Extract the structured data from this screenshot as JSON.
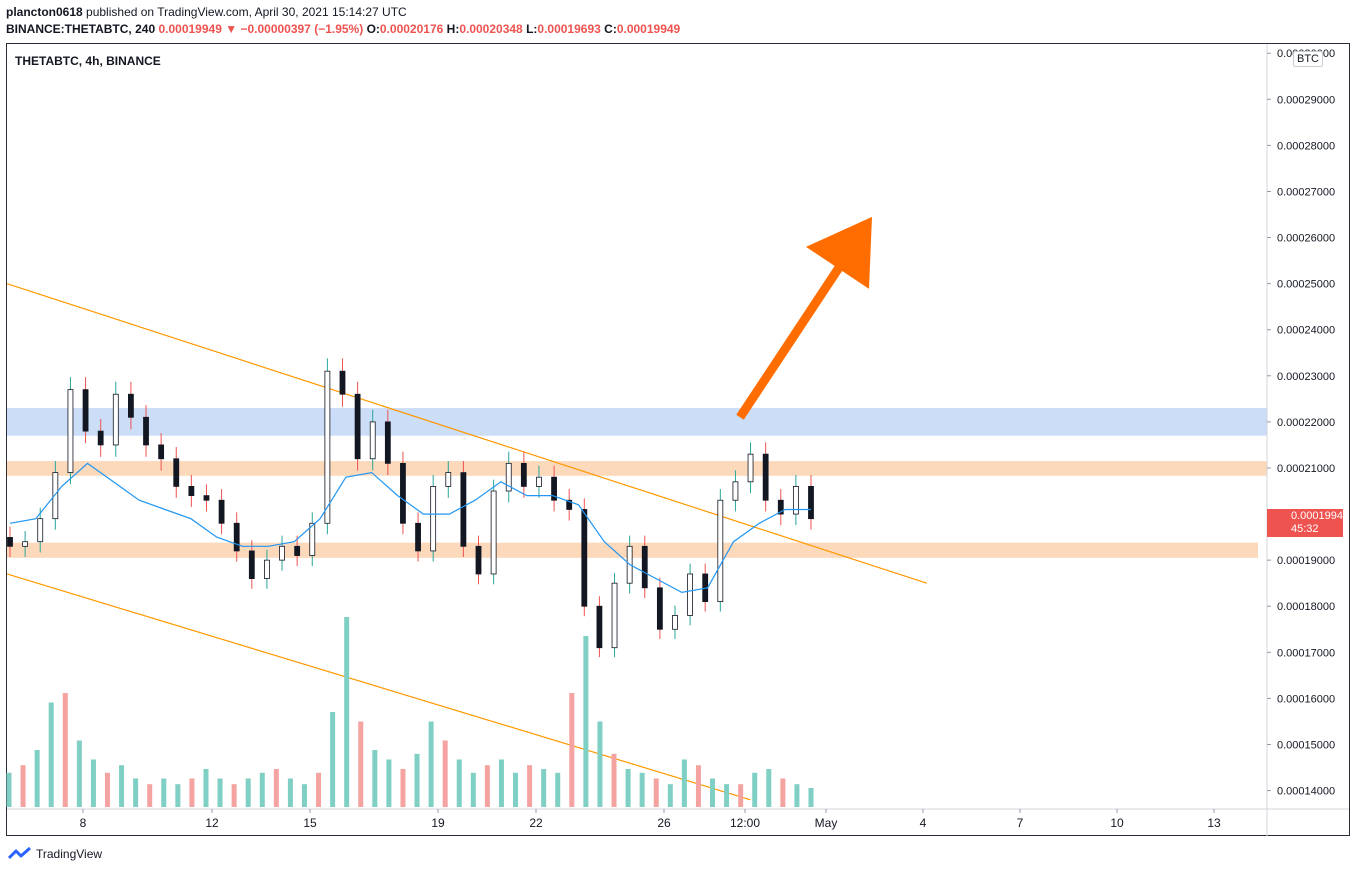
{
  "header": {
    "user": "plancton0618",
    "published": " published on TradingView.com, April 30, 2021 15:14:27 UTC",
    "symbol_line": "BINANCE:THETABTC, 240",
    "last": "0.00019949",
    "change": "−0.00000397 (−1.95%)",
    "o_label": "O:",
    "o_val": "0.00020176",
    "h_label": "H:",
    "h_val": "0.00020348",
    "l_label": "L:",
    "l_val": "0.00019693",
    "c_label": "C:",
    "c_val": "0.00019949"
  },
  "plot_title": "THETABTC, 4h, BINANCE",
  "currency": "BTC",
  "price_tag": {
    "price": "0.00019949",
    "countdown": "45:32"
  },
  "footer": {
    "brand": "TradingView"
  },
  "colors": {
    "up": "#26a69a",
    "down": "#ef5350",
    "ma": "#2196f3",
    "trend": "#ff9800",
    "arrow": "#ff6d00",
    "resistance_zone": "#bbd2f5",
    "support_zone": "#fcd5b4"
  },
  "chart_data": {
    "type": "candlestick",
    "title": "THETABTC, 4h, BINANCE",
    "ylim": [
      0.000136,
      0.000302
    ],
    "y_ticks": [
      "0.00014000",
      "0.00015000",
      "0.00016000",
      "0.00017000",
      "0.00018000",
      "0.00019000",
      "0.00020000",
      "0.00021000",
      "0.00022000",
      "0.00023000",
      "0.00024000",
      "0.00025000",
      "0.00026000",
      "0.00027000",
      "0.00028000",
      "0.00029000",
      "0.00030000"
    ],
    "x_ticks": [
      "8",
      "12",
      "15",
      "19",
      "22",
      "26",
      "12:00",
      "May",
      "4",
      "7",
      "10",
      "13"
    ],
    "close_path": [
      0.000193,
      0.000194,
      0.000199,
      0.000209,
      0.000227,
      0.000218,
      0.000215,
      0.000226,
      0.000221,
      0.000215,
      0.000212,
      0.000206,
      0.000204,
      0.000203,
      0.000198,
      0.000192,
      0.000186,
      0.00019,
      0.000193,
      0.000191,
      0.000198,
      0.000231,
      0.000226,
      0.000212,
      0.00022,
      0.000211,
      0.000198,
      0.000192,
      0.000206,
      0.000209,
      0.000193,
      0.000187,
      0.000205,
      0.000211,
      0.000206,
      0.000208,
      0.000203,
      0.000201,
      0.00018,
      0.000171,
      0.000185,
      0.000193,
      0.000184,
      0.000175,
      0.000178,
      0.000187,
      0.000181,
      0.000203,
      0.000207,
      0.000213,
      0.000203,
      0.0002,
      0.000206,
      0.000199
    ],
    "moving_average_path": [
      0.000198,
      0.000199,
      0.000206,
      0.000211,
      0.000207,
      0.000203,
      0.000201,
      0.000199,
      0.000195,
      0.000193,
      0.000193,
      0.000194,
      0.000199,
      0.000208,
      0.000209,
      0.000204,
      0.0002,
      0.0002,
      0.000203,
      0.000207,
      0.000204,
      0.000204,
      0.000202,
      0.000194,
      0.000189,
      0.000186,
      0.000183,
      0.000184,
      0.000194,
      0.000198,
      0.000201,
      0.000201
    ],
    "volume_relative": [
      0.18,
      0.22,
      0.3,
      0.55,
      0.6,
      0.35,
      0.25,
      0.18,
      0.22,
      0.15,
      0.12,
      0.15,
      0.12,
      0.15,
      0.2,
      0.15,
      0.12,
      0.15,
      0.18,
      0.2,
      0.15,
      0.12,
      0.18,
      0.5,
      1.0,
      0.45,
      0.3,
      0.25,
      0.2,
      0.28,
      0.45,
      0.35,
      0.25,
      0.18,
      0.22,
      0.25,
      0.18,
      0.22,
      0.2,
      0.18,
      0.6,
      0.9,
      0.45,
      0.28,
      0.2,
      0.18,
      0.15,
      0.12,
      0.25,
      0.22,
      0.15,
      0.12,
      0.12,
      0.18,
      0.2,
      0.15,
      0.12,
      0.1
    ],
    "trendlines": [
      {
        "name": "upper channel",
        "from": [
          0,
          0.00025
        ],
        "to": [
          0.73,
          0.000185
        ]
      },
      {
        "name": "lower channel",
        "from": [
          0,
          0.000187
        ],
        "to": [
          0.59,
          0.000138
        ]
      }
    ],
    "zones": [
      {
        "type": "resistance",
        "low": 0.000217,
        "high": 0.000223
      },
      {
        "type": "resistance",
        "low": 0.0002083,
        "high": 0.0002115
      },
      {
        "type": "support",
        "low": 0.0001905,
        "high": 0.0001938
      }
    ],
    "arrow": {
      "from_price": 0.000221,
      "to_price": 0.0002645,
      "direction": "up"
    }
  }
}
